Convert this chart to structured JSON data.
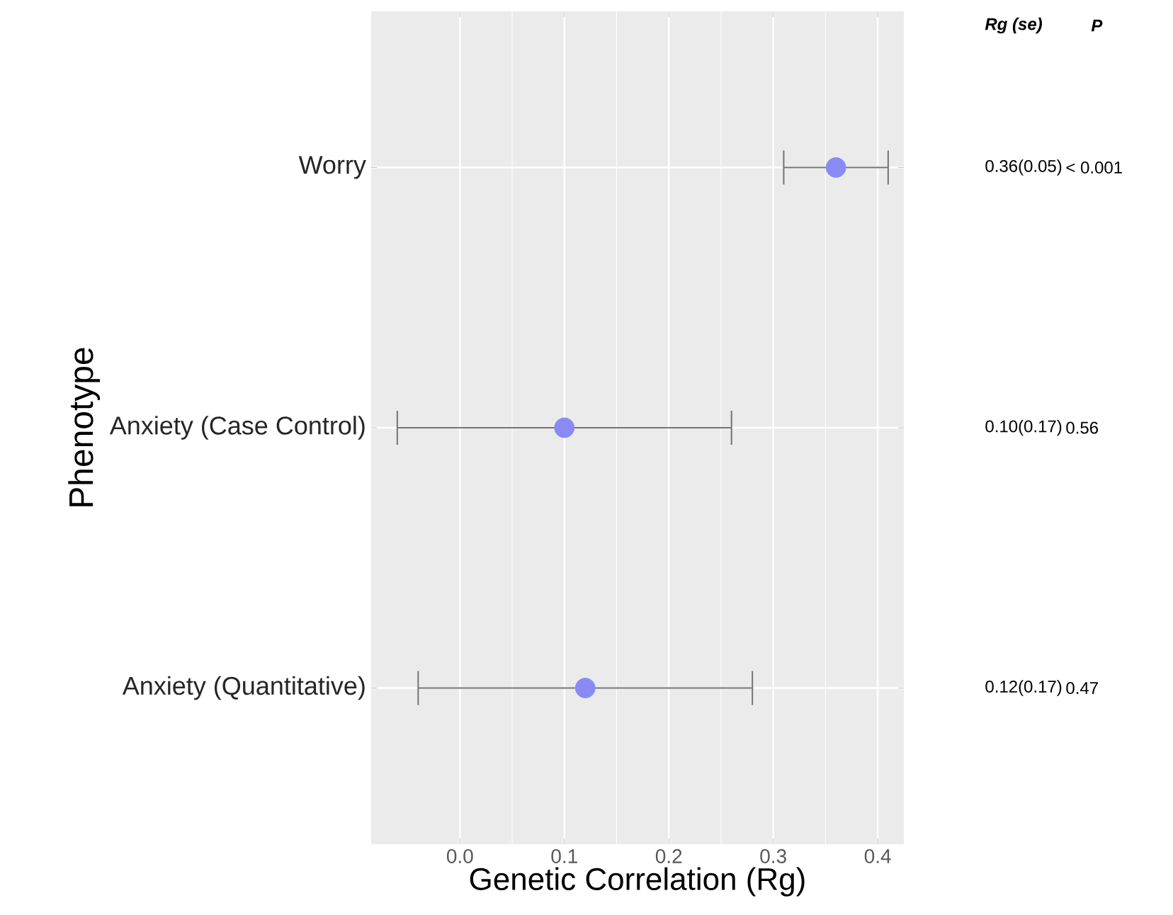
{
  "chart_data": {
    "type": "scatter",
    "orientation": "horizontal",
    "xlabel": "Genetic Correlation (Rg)",
    "ylabel": "Phenotype",
    "categories": [
      "Worry",
      "Anxiety (Case Control)",
      "Anxiety (Quantitative)"
    ],
    "values": [
      0.36,
      0.1,
      0.12
    ],
    "errors": [
      0.05,
      0.16,
      0.16
    ],
    "color": "#8a8af5",
    "marker": "circle",
    "grid": true,
    "xlim": [
      -0.085,
      0.425
    ],
    "xticks": [
      {
        "value": 0,
        "label": "0.0"
      },
      0.1,
      0.2,
      0.3,
      0.4
    ],
    "annotations": [
      "Rg (se)",
      "P",
      "0.36(0.05)",
      "< 0.001",
      "0.10(0.17)",
      "0.56",
      "0.12(0.17)",
      "0.47"
    ]
  }
}
